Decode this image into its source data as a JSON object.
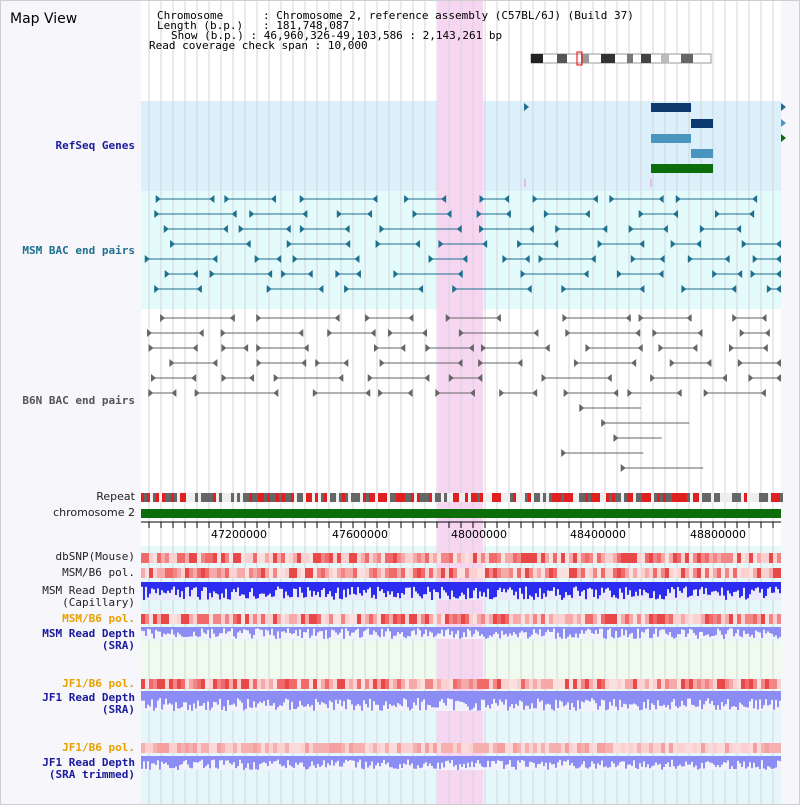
{
  "title": "Map View",
  "info": {
    "chromosome_label": "Chromosome",
    "chromosome_value": "Chromosome 2, reference assembly (C57BL/6J) (Build 37)",
    "length_label": "Length (b.p.)",
    "length_value": "181,748,087",
    "show_label": "Show (b.p.)",
    "show_value": "46,960,326-49,103,586 : 2,143,261 bp",
    "span_label": "Read coverage check span",
    "span_value": "10,000"
  },
  "tracks": {
    "refseq": "RefSeq Genes",
    "msm_bac": "MSM BAC end pairs",
    "b6n_bac": "B6N BAC end pairs",
    "repeat": "Repeat",
    "chromosome": "chromosome 2",
    "dbsnp": "dbSNP(Mouse)",
    "msm_b6_pol_1": "MSM/B6 pol.",
    "msm_depth_cap": "MSM Read Depth\n(Capillary)",
    "msm_b6_pol_2": "MSM/B6 pol.",
    "msm_depth_sra": "MSM Read Depth\n(SRA)",
    "jf1_b6_pol_1": "JF1/B6 pol.",
    "jf1_depth_sra": "JF1 Read Depth\n(SRA)",
    "jf1_b6_pol_2": "JF1/B6 pol.",
    "jf1_depth_trim": "JF1 Read Depth\n(SRA trimmed)"
  },
  "axis": {
    "ticks": [
      "47200000",
      "47600000",
      "48000000",
      "48400000",
      "48800000"
    ]
  },
  "colors": {
    "refseq_bg": "#dbf0fa",
    "msm_bg": "#e3fbfb",
    "highlight": "#f7d6f2",
    "repeat_red": "#e02020",
    "chromosome_green": "#0b6e0b",
    "depth_blue": "#2c2cf0",
    "depth_light": "#8c8cf5"
  }
}
